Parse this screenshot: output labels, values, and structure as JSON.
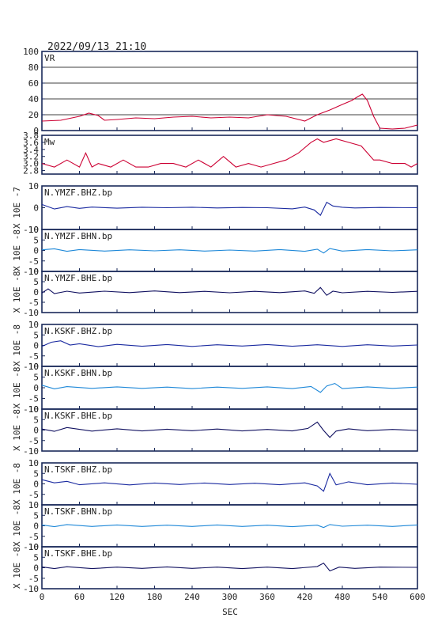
{
  "header": {
    "title": "2022/09/13 21:10"
  },
  "colors": {
    "frame": "#1a2a5a",
    "vr_line": "#cc0033",
    "mw_line": "#cc0033",
    "bhz_line": "#1a2aa0",
    "bhn_line": "#1e88d8",
    "bhe_line": "#101060",
    "grid": "#000000"
  },
  "chart_data": [
    {
      "type": "line",
      "id": "vr",
      "panel_label": "VR",
      "ylim": [
        0,
        100
      ],
      "yticks": [
        "0",
        "20",
        "40",
        "60",
        "80",
        "100"
      ],
      "grid": true,
      "x": [
        0,
        30,
        60,
        75,
        90,
        100,
        120,
        150,
        180,
        210,
        240,
        270,
        300,
        330,
        360,
        390,
        420,
        440,
        460,
        480,
        495,
        505,
        512,
        520,
        530,
        540,
        560,
        580,
        600
      ],
      "values": [
        12,
        13,
        18,
        22,
        19,
        13,
        14,
        16,
        15,
        17,
        18,
        16,
        17,
        16,
        20,
        18,
        12,
        20,
        26,
        33,
        38,
        43,
        46,
        38,
        18,
        3,
        2,
        3,
        7
      ]
    },
    {
      "type": "line",
      "id": "mw",
      "panel_label": "Mw",
      "ylim": [
        2.7,
        3.8
      ],
      "yticks": [
        "2.8",
        "3.0",
        "3.2",
        "3.4",
        "3.6",
        "3.8"
      ],
      "grid": false,
      "x": [
        0,
        20,
        40,
        60,
        70,
        80,
        90,
        110,
        130,
        150,
        170,
        190,
        210,
        230,
        250,
        270,
        290,
        310,
        330,
        350,
        370,
        390,
        410,
        430,
        440,
        450,
        470,
        490,
        510,
        520,
        530,
        540,
        560,
        580,
        590,
        600
      ],
      "values": [
        3.0,
        2.9,
        3.1,
        2.9,
        3.3,
        2.9,
        3.0,
        2.9,
        3.1,
        2.9,
        2.9,
        3.0,
        3.0,
        2.9,
        3.1,
        2.9,
        3.2,
        2.9,
        3.0,
        2.9,
        3.0,
        3.1,
        3.3,
        3.6,
        3.7,
        3.6,
        3.7,
        3.6,
        3.5,
        3.3,
        3.1,
        3.1,
        3.0,
        3.0,
        2.9,
        3.0
      ]
    },
    {
      "type": "line",
      "id": "ymzf-bhz",
      "panel_label": "N.YMZF.BHZ.bp",
      "ylabel": "X 10E -7",
      "ylim": [
        -10,
        10
      ],
      "yticks": [
        "-10",
        "0",
        "10"
      ],
      "line_color": "#1a2aa0",
      "x": [
        0,
        20,
        40,
        60,
        80,
        120,
        160,
        200,
        240,
        280,
        320,
        360,
        400,
        420,
        435,
        445,
        455,
        465,
        480,
        500,
        540,
        600
      ],
      "values": [
        1.5,
        -0.6,
        0.5,
        -0.3,
        0.3,
        -0.2,
        0.2,
        0,
        0.2,
        -0.1,
        0.1,
        0,
        -0.5,
        0.3,
        -1,
        -3.5,
        2.5,
        0.8,
        0.2,
        -0.1,
        0.1,
        0
      ]
    },
    {
      "type": "line",
      "id": "ymzf-bhn",
      "panel_label": "N.YMZF.BHN.bp",
      "ylabel": "X 10E -8",
      "ylim": [
        -10,
        10
      ],
      "yticks": [
        "-10",
        "-5",
        "0",
        "5",
        "10"
      ],
      "line_color": "#1e88d8",
      "x": [
        0,
        20,
        40,
        60,
        100,
        140,
        180,
        220,
        260,
        300,
        340,
        380,
        420,
        440,
        450,
        460,
        480,
        520,
        560,
        600
      ],
      "values": [
        0.3,
        0.8,
        -0.4,
        0.4,
        -0.3,
        0.3,
        -0.2,
        0.3,
        -0.3,
        0.2,
        -0.3,
        0.4,
        -0.4,
        0.6,
        -1.2,
        0.9,
        -0.3,
        0.4,
        -0.2,
        0.3
      ]
    },
    {
      "type": "line",
      "id": "ymzf-bhe",
      "panel_label": "N.YMZF.BHE.bp",
      "ylabel": "X 10E -8",
      "ylim": [
        -10,
        10
      ],
      "yticks": [
        "-10",
        "-5",
        "0",
        "5",
        "10"
      ],
      "line_color": "#101060",
      "x": [
        0,
        10,
        20,
        40,
        60,
        100,
        140,
        180,
        220,
        260,
        300,
        340,
        380,
        420,
        435,
        445,
        455,
        465,
        480,
        520,
        560,
        600
      ],
      "values": [
        -0.5,
        1.5,
        -0.8,
        0.4,
        -0.5,
        0.4,
        -0.3,
        0.5,
        -0.3,
        0.3,
        -0.4,
        0.3,
        -0.3,
        0.5,
        -0.6,
        2.2,
        -1.6,
        0.4,
        -0.4,
        0.3,
        -0.2,
        0.3
      ]
    },
    {
      "type": "line",
      "id": "kskf-bhz",
      "panel_label": "N.KSKF.BHZ.bp",
      "ylabel": "X 10E -8",
      "ylim": [
        -10,
        10
      ],
      "yticks": [
        "-10",
        "-5",
        "0",
        "5",
        "10"
      ],
      "line_color": "#1a2aa0",
      "x": [
        0,
        15,
        30,
        45,
        60,
        90,
        120,
        160,
        200,
        240,
        280,
        320,
        360,
        400,
        440,
        480,
        520,
        560,
        600
      ],
      "values": [
        -0.5,
        1.5,
        2.2,
        0.2,
        0.8,
        -0.6,
        0.5,
        -0.4,
        0.4,
        -0.5,
        0.3,
        -0.3,
        0.4,
        -0.4,
        0.3,
        -0.5,
        0.3,
        -0.3,
        0.2
      ]
    },
    {
      "type": "line",
      "id": "kskf-bhn",
      "panel_label": "N.KSKF.BHN.bp",
      "ylabel": "X 10E -8",
      "ylim": [
        -10,
        10
      ],
      "yticks": [
        "-10",
        "-5",
        "0",
        "5",
        "10"
      ],
      "line_color": "#1e88d8",
      "x": [
        0,
        20,
        40,
        80,
        120,
        160,
        200,
        240,
        280,
        320,
        360,
        400,
        430,
        445,
        455,
        468,
        480,
        520,
        560,
        600
      ],
      "values": [
        1.2,
        -0.5,
        0.5,
        -0.3,
        0.4,
        -0.3,
        0.3,
        -0.4,
        0.3,
        -0.3,
        0.4,
        -0.4,
        0.6,
        -2.2,
        0.8,
        2.0,
        -0.4,
        0.4,
        -0.3,
        0.3
      ]
    },
    {
      "type": "line",
      "id": "kskf-bhe",
      "panel_label": "N.KSKF.BHE.bp",
      "ylabel": "X 10E -8",
      "ylim": [
        -10,
        10
      ],
      "yticks": [
        "-10",
        "-5",
        "0",
        "5",
        "10"
      ],
      "line_color": "#101060",
      "x": [
        0,
        20,
        40,
        80,
        120,
        160,
        200,
        240,
        280,
        320,
        360,
        400,
        425,
        440,
        450,
        460,
        470,
        490,
        520,
        560,
        600
      ],
      "values": [
        0.5,
        -0.6,
        1.2,
        -0.5,
        0.6,
        -0.4,
        0.4,
        -0.3,
        0.5,
        -0.4,
        0.3,
        -0.4,
        0.8,
        3.8,
        -0.2,
        -3.5,
        -0.5,
        0.6,
        -0.3,
        0.3,
        -0.2
      ]
    },
    {
      "type": "line",
      "id": "tskf-bhz",
      "panel_label": "N.TSKF.BHZ.bp",
      "ylabel": "X 10E -8",
      "ylim": [
        -10,
        10
      ],
      "yticks": [
        "-5",
        "0",
        "5",
        "10"
      ],
      "line_color": "#1a2aa0",
      "x": [
        0,
        20,
        40,
        60,
        100,
        140,
        180,
        220,
        260,
        300,
        340,
        380,
        420,
        440,
        450,
        460,
        470,
        490,
        520,
        560,
        600
      ],
      "values": [
        2.0,
        0.5,
        1.2,
        -0.4,
        0.5,
        -0.5,
        0.4,
        -0.3,
        0.4,
        -0.3,
        0.3,
        -0.4,
        0.5,
        -1.0,
        -3.5,
        5.0,
        -0.5,
        1.0,
        -0.4,
        0.4,
        -0.2
      ]
    },
    {
      "type": "line",
      "id": "tskf-bhn",
      "panel_label": "N.TSKF.BHN.bp",
      "ylabel": "X 10E -8",
      "ylim": [
        -10,
        10
      ],
      "yticks": [
        "-10",
        "-5",
        "0",
        "5",
        "10"
      ],
      "line_color": "#1e88d8",
      "x": [
        0,
        20,
        40,
        80,
        120,
        160,
        200,
        240,
        280,
        320,
        360,
        400,
        440,
        450,
        460,
        480,
        520,
        560,
        600
      ],
      "values": [
        0.4,
        -0.4,
        0.6,
        -0.3,
        0.4,
        -0.3,
        0.3,
        -0.3,
        0.4,
        -0.3,
        0.3,
        -0.4,
        0.3,
        -0.8,
        0.6,
        -0.2,
        0.3,
        -0.3,
        0.4
      ]
    },
    {
      "type": "line",
      "id": "tskf-bhe",
      "panel_label": "N.TSKF.BHE.bp",
      "ylabel": "X 10E -8",
      "ylim": [
        -10,
        10
      ],
      "yticks": [
        "-10",
        "-5",
        "0",
        "5",
        "10"
      ],
      "line_color": "#101060",
      "x": [
        0,
        20,
        40,
        80,
        120,
        160,
        200,
        240,
        280,
        320,
        360,
        400,
        440,
        450,
        460,
        475,
        500,
        540,
        600
      ],
      "values": [
        0.4,
        -0.4,
        0.5,
        -0.4,
        0.3,
        -0.3,
        0.4,
        -0.3,
        0.3,
        -0.4,
        0.3,
        -0.4,
        0.6,
        2.2,
        -1.5,
        0.3,
        -0.3,
        0.3,
        0.2
      ]
    }
  ],
  "xaxis": {
    "ticks": [
      "0",
      "60",
      "120",
      "180",
      "240",
      "300",
      "360",
      "420",
      "480",
      "540",
      "600"
    ],
    "label": "SEC",
    "xlim": [
      0,
      600
    ]
  }
}
